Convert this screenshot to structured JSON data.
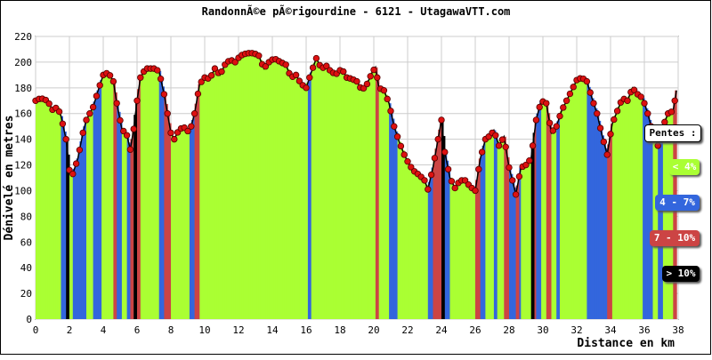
{
  "chart_data": {
    "type": "area",
    "title": "RandonnÃ©e pÃ©rigourdine - 6121 - UtagawaVTT.com",
    "xlabel": "Distance en km",
    "ylabel": "Dénivelé en metres",
    "xlim": [
      0,
      38
    ],
    "ylim": [
      0,
      220
    ],
    "x_ticks": [
      "0",
      "2",
      "4",
      "6",
      "8",
      "10",
      "12",
      "14",
      "16",
      "18",
      "20",
      "22",
      "24",
      "26",
      "28",
      "30",
      "32",
      "34",
      "36",
      "38"
    ],
    "y_ticks": [
      "0",
      "20",
      "40",
      "60",
      "80",
      "100",
      "120",
      "140",
      "160",
      "180",
      "200",
      "220"
    ],
    "grid": true,
    "legend_title": "Pentes :",
    "legend": [
      {
        "label": "< 4%",
        "color": "#aaff33"
      },
      {
        "label": "4 - 7%",
        "color": "#3366dd"
      },
      {
        "label": "7 - 10%",
        "color": "#cc4444"
      },
      {
        "label": "> 10%",
        "color": "#000000"
      }
    ],
    "marker_color": "#dd1111",
    "profile": [
      [
        0.0,
        170
      ],
      [
        0.3,
        172
      ],
      [
        0.7,
        170
      ],
      [
        1.0,
        163
      ],
      [
        1.3,
        165
      ],
      [
        1.5,
        158
      ],
      [
        1.8,
        140
      ],
      [
        2.0,
        116
      ],
      [
        2.2,
        113
      ],
      [
        2.5,
        125
      ],
      [
        2.8,
        145
      ],
      [
        3.0,
        155
      ],
      [
        3.4,
        165
      ],
      [
        3.7,
        178
      ],
      [
        4.0,
        190
      ],
      [
        4.3,
        192
      ],
      [
        4.6,
        185
      ],
      [
        4.8,
        168
      ],
      [
        5.1,
        148
      ],
      [
        5.4,
        143
      ],
      [
        5.6,
        132
      ],
      [
        5.8,
        148
      ],
      [
        6.0,
        170
      ],
      [
        6.2,
        188
      ],
      [
        6.5,
        195
      ],
      [
        7.0,
        195
      ],
      [
        7.3,
        193
      ],
      [
        7.6,
        175
      ],
      [
        7.8,
        160
      ],
      [
        8.0,
        145
      ],
      [
        8.2,
        140
      ],
      [
        8.5,
        148
      ],
      [
        8.8,
        149
      ],
      [
        9.1,
        145
      ],
      [
        9.4,
        160
      ],
      [
        9.7,
        183
      ],
      [
        10.0,
        188
      ],
      [
        10.3,
        187
      ],
      [
        10.6,
        195
      ],
      [
        10.9,
        190
      ],
      [
        11.2,
        198
      ],
      [
        11.5,
        202
      ],
      [
        11.8,
        200
      ],
      [
        12.1,
        205
      ],
      [
        12.5,
        207
      ],
      [
        12.9,
        207
      ],
      [
        13.2,
        205
      ],
      [
        13.5,
        195
      ],
      [
        13.8,
        200
      ],
      [
        14.1,
        203
      ],
      [
        14.5,
        200
      ],
      [
        14.8,
        198
      ],
      [
        15.1,
        188
      ],
      [
        15.4,
        190
      ],
      [
        15.7,
        183
      ],
      [
        16.0,
        180
      ],
      [
        16.3,
        192
      ],
      [
        16.6,
        203
      ],
      [
        16.9,
        195
      ],
      [
        17.2,
        197
      ],
      [
        17.5,
        192
      ],
      [
        17.8,
        191
      ],
      [
        18.1,
        195
      ],
      [
        18.4,
        188
      ],
      [
        18.7,
        187
      ],
      [
        19.0,
        185
      ],
      [
        19.3,
        178
      ],
      [
        19.6,
        183
      ],
      [
        19.9,
        192
      ],
      [
        20.1,
        196
      ],
      [
        20.3,
        180
      ],
      [
        20.6,
        178
      ],
      [
        20.9,
        168
      ],
      [
        21.2,
        150
      ],
      [
        21.5,
        138
      ],
      [
        21.8,
        128
      ],
      [
        22.1,
        120
      ],
      [
        22.4,
        115
      ],
      [
        22.7,
        112
      ],
      [
        23.0,
        108
      ],
      [
        23.2,
        101
      ],
      [
        23.5,
        118
      ],
      [
        23.8,
        140
      ],
      [
        24.0,
        155
      ],
      [
        24.2,
        130
      ],
      [
        24.5,
        110
      ],
      [
        24.8,
        102
      ],
      [
        25.1,
        108
      ],
      [
        25.4,
        108
      ],
      [
        25.7,
        103
      ],
      [
        26.0,
        100
      ],
      [
        26.3,
        125
      ],
      [
        26.6,
        140
      ],
      [
        26.9,
        143
      ],
      [
        27.1,
        147
      ],
      [
        27.4,
        135
      ],
      [
        27.7,
        142
      ],
      [
        28.0,
        118
      ],
      [
        28.2,
        108
      ],
      [
        28.4,
        97
      ],
      [
        28.7,
        118
      ],
      [
        29.0,
        120
      ],
      [
        29.3,
        125
      ],
      [
        29.6,
        155
      ],
      [
        29.9,
        170
      ],
      [
        30.2,
        168
      ],
      [
        30.5,
        145
      ],
      [
        30.8,
        150
      ],
      [
        31.1,
        162
      ],
      [
        31.4,
        170
      ],
      [
        31.7,
        178
      ],
      [
        32.0,
        186
      ],
      [
        32.3,
        188
      ],
      [
        32.6,
        185
      ],
      [
        32.9,
        172
      ],
      [
        33.2,
        160
      ],
      [
        33.5,
        143
      ],
      [
        33.8,
        128
      ],
      [
        34.1,
        152
      ],
      [
        34.4,
        162
      ],
      [
        34.7,
        172
      ],
      [
        35.0,
        170
      ],
      [
        35.3,
        180
      ],
      [
        35.6,
        175
      ],
      [
        35.9,
        172
      ],
      [
        36.2,
        160
      ],
      [
        36.5,
        145
      ],
      [
        36.8,
        135
      ],
      [
        37.1,
        150
      ],
      [
        37.4,
        160
      ],
      [
        37.7,
        162
      ],
      [
        37.9,
        178
      ]
    ]
  }
}
